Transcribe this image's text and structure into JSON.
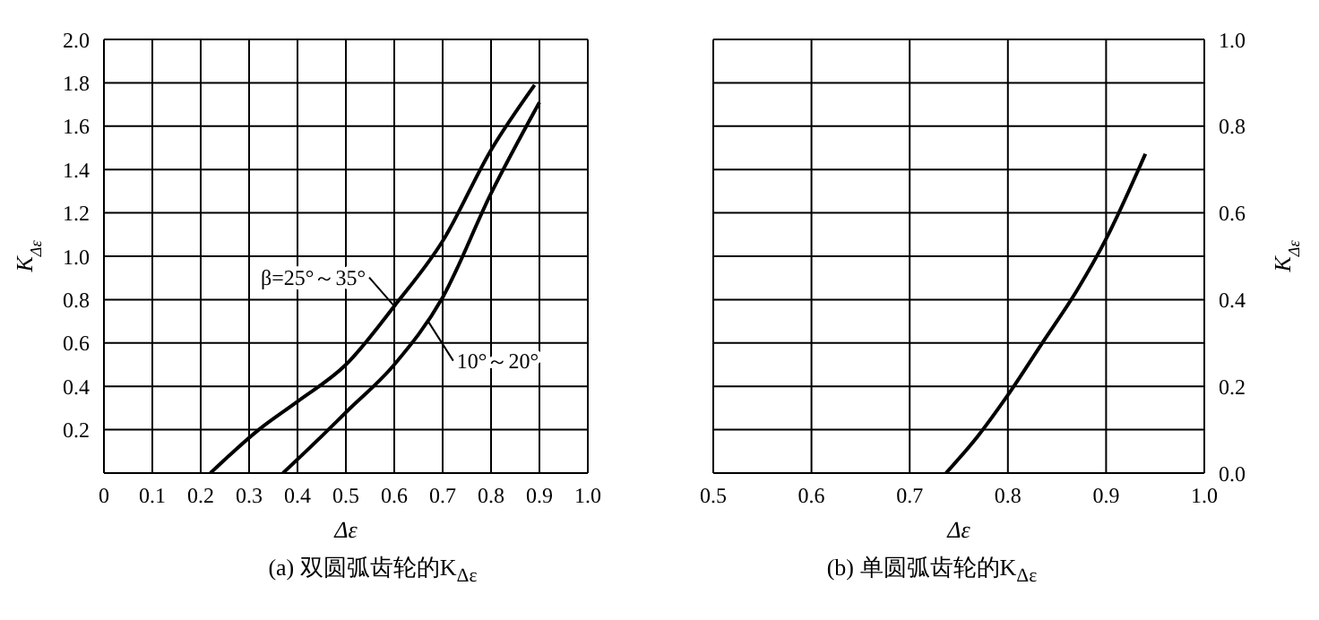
{
  "chart_data": [
    {
      "type": "line",
      "title": "(a) 双圆弧齿轮的K$_{Δε}$",
      "xlabel": "Δε",
      "ylabel": "K$_{Δε}$",
      "xlim": [
        0,
        1
      ],
      "xticks": [
        0,
        0.1,
        0.2,
        0.3,
        0.4,
        0.5,
        0.6,
        0.7,
        0.8,
        0.9,
        {
          "value": 1,
          "label": "1.0"
        }
      ],
      "ylim": [
        0,
        2
      ],
      "yticks": [
        {
          "value": 0,
          "label": null
        },
        0.2,
        0.4,
        0.6,
        0.8,
        {
          "value": 1,
          "label": "1.0"
        },
        1.2,
        1.4,
        1.6,
        1.8,
        {
          "value": 2,
          "label": "2.0"
        }
      ],
      "grid": true,
      "marker": "none",
      "line_style": "solid",
      "series": [
        {
          "color": "#000000",
          "x": [
            0.22,
            0.32,
            0.4,
            0.5,
            0.6,
            0.7,
            0.8,
            0.89
          ],
          "values": [
            0,
            0.2,
            0.33,
            0.5,
            0.77,
            1.07,
            1.49,
            1.79
          ]
        },
        {
          "color": "#000000",
          "x": [
            0.37,
            0.45,
            0.5,
            0.6,
            0.7,
            0.8,
            0.9
          ],
          "values": [
            0,
            0.17,
            0.28,
            0.5,
            0.81,
            1.29,
            1.71
          ]
        }
      ],
      "annotations": [
        {
          "text": "β=25°～35°",
          "x": 0.6,
          "y": 0.77
        },
        {
          "text": "10°～20°",
          "x": 0.67,
          "y": 0.7
        }
      ]
    },
    {
      "type": "line",
      "title": "(b) 单圆弧齿轮的K$_{Δε}$",
      "xlabel": "Δε",
      "ylabel": "K$_{Δε}$",
      "xlim": [
        0.5,
        1
      ],
      "xticks": [
        0.5,
        0.6,
        0.7,
        0.8,
        0.9,
        {
          "value": 1,
          "label": "1.0"
        }
      ],
      "ylim": [
        0,
        1
      ],
      "yticks": [
        {
          "value": 0,
          "label": "0.0"
        },
        {
          "value": 0.1,
          "label": null
        },
        0.2,
        {
          "value": 0.3,
          "label": null
        },
        0.4,
        {
          "value": 0.5,
          "label": null
        },
        0.6,
        {
          "value": 0.7,
          "label": null
        },
        0.8,
        {
          "value": 0.9,
          "label": null
        },
        {
          "value": 1,
          "label": "1.0"
        }
      ],
      "grid": true,
      "marker": "none",
      "line_style": "solid",
      "series": [
        {
          "color": "#000000",
          "x": [
            0.737,
            0.77,
            0.8,
            0.835,
            0.87,
            0.9,
            0.94
          ],
          "values": [
            0,
            0.087,
            0.18,
            0.3,
            0.42,
            0.54,
            0.736
          ]
        }
      ]
    }
  ]
}
